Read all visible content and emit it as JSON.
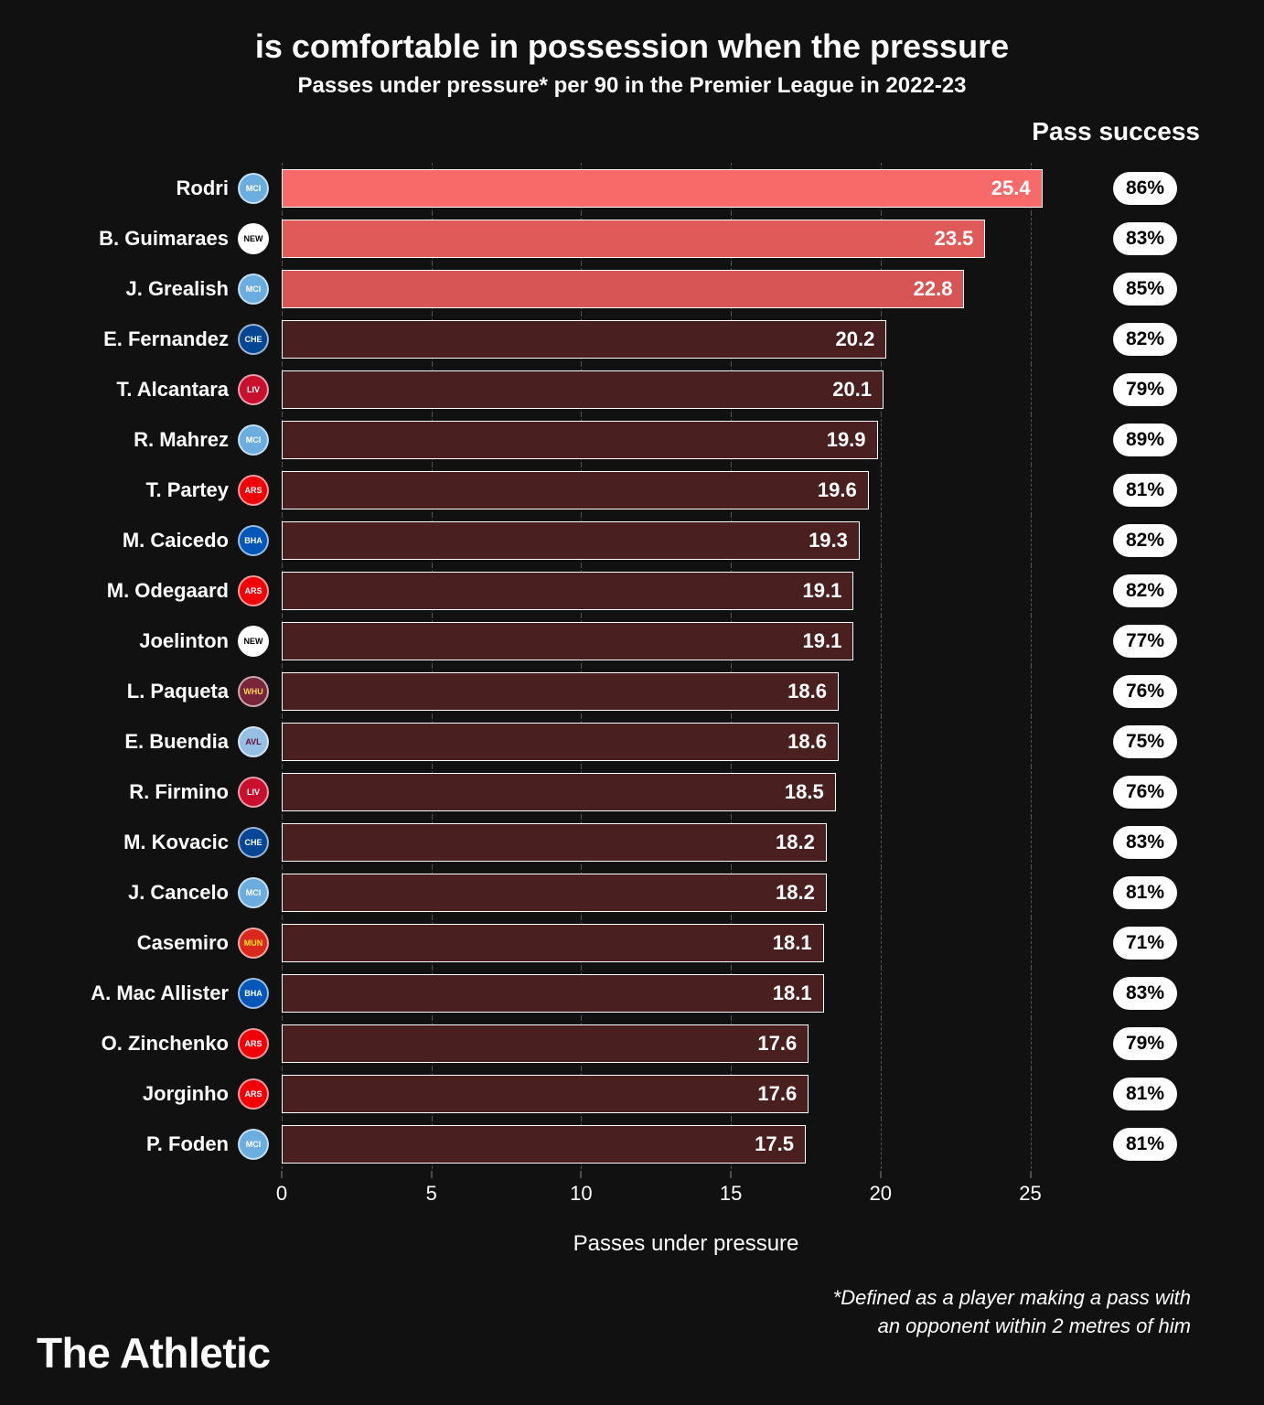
{
  "title": "is comfortable in possession when the pressure",
  "subtitle": "Passes under pressure* per 90 in the Premier League in 2022-23",
  "pass_success_header": "Pass success",
  "x_axis_label": "Passes under pressure",
  "footnote_line1": "*Defined as a player making a pass with",
  "footnote_line2": "an opponent within 2 metres of him",
  "brand": "The Athletic",
  "chart": {
    "type": "bar",
    "x_max": 27,
    "x_ticks": [
      0,
      5,
      10,
      15,
      20,
      25
    ],
    "bar_border_color": "#ffffff",
    "highlight_colors": [
      "#f86a6a",
      "#e05a5a",
      "#d85555"
    ],
    "default_bar_color": "#4a1f1f",
    "grid_color": "#555555",
    "background": "#111111",
    "label_fontsize": 22,
    "value_fontsize": 22,
    "pill_bg": "#ffffff",
    "pill_fg": "#000000"
  },
  "teams": {
    "mci": {
      "bg": "#6caddf",
      "fg": "#ffffff",
      "abbr": "MCI"
    },
    "new": {
      "bg": "#ffffff",
      "fg": "#000000",
      "abbr": "NEW"
    },
    "che": {
      "bg": "#034694",
      "fg": "#ffffff",
      "abbr": "CHE"
    },
    "liv": {
      "bg": "#c8102e",
      "fg": "#ffffff",
      "abbr": "LIV"
    },
    "ars": {
      "bg": "#ef0107",
      "fg": "#ffffff",
      "abbr": "ARS"
    },
    "bha": {
      "bg": "#0057b8",
      "fg": "#ffffff",
      "abbr": "BHA"
    },
    "whu": {
      "bg": "#7a263a",
      "fg": "#f3d459",
      "abbr": "WHU"
    },
    "avl": {
      "bg": "#95bfe5",
      "fg": "#670e36",
      "abbr": "AVL"
    },
    "mun": {
      "bg": "#da291c",
      "fg": "#fbe122",
      "abbr": "MUN"
    }
  },
  "players": [
    {
      "name": "Rodri",
      "team": "mci",
      "value": 25.4,
      "success": "86%",
      "highlight": 0
    },
    {
      "name": "B. Guimaraes",
      "team": "new",
      "value": 23.5,
      "success": "83%",
      "highlight": 1
    },
    {
      "name": "J. Grealish",
      "team": "mci",
      "value": 22.8,
      "success": "85%",
      "highlight": 2
    },
    {
      "name": "E. Fernandez",
      "team": "che",
      "value": 20.2,
      "success": "82%",
      "highlight": -1
    },
    {
      "name": "T. Alcantara",
      "team": "liv",
      "value": 20.1,
      "success": "79%",
      "highlight": -1
    },
    {
      "name": "R. Mahrez",
      "team": "mci",
      "value": 19.9,
      "success": "89%",
      "highlight": -1
    },
    {
      "name": "T. Partey",
      "team": "ars",
      "value": 19.6,
      "success": "81%",
      "highlight": -1
    },
    {
      "name": "M. Caicedo",
      "team": "bha",
      "value": 19.3,
      "success": "82%",
      "highlight": -1
    },
    {
      "name": "M. Odegaard",
      "team": "ars",
      "value": 19.1,
      "success": "82%",
      "highlight": -1
    },
    {
      "name": "Joelinton",
      "team": "new",
      "value": 19.1,
      "success": "77%",
      "highlight": -1
    },
    {
      "name": "L. Paqueta",
      "team": "whu",
      "value": 18.6,
      "success": "76%",
      "highlight": -1
    },
    {
      "name": "E. Buendia",
      "team": "avl",
      "value": 18.6,
      "success": "75%",
      "highlight": -1
    },
    {
      "name": "R. Firmino",
      "team": "liv",
      "value": 18.5,
      "success": "76%",
      "highlight": -1
    },
    {
      "name": "M. Kovacic",
      "team": "che",
      "value": 18.2,
      "success": "83%",
      "highlight": -1
    },
    {
      "name": "J. Cancelo",
      "team": "mci",
      "value": 18.2,
      "success": "81%",
      "highlight": -1
    },
    {
      "name": "Casemiro",
      "team": "mun",
      "value": 18.1,
      "success": "71%",
      "highlight": -1
    },
    {
      "name": "A. Mac Allister",
      "team": "bha",
      "value": 18.1,
      "success": "83%",
      "highlight": -1
    },
    {
      "name": "O. Zinchenko",
      "team": "ars",
      "value": 17.6,
      "success": "79%",
      "highlight": -1
    },
    {
      "name": "Jorginho",
      "team": "ars",
      "value": 17.6,
      "success": "81%",
      "highlight": -1
    },
    {
      "name": "P. Foden",
      "team": "mci",
      "value": 17.5,
      "success": "81%",
      "highlight": -1
    }
  ]
}
